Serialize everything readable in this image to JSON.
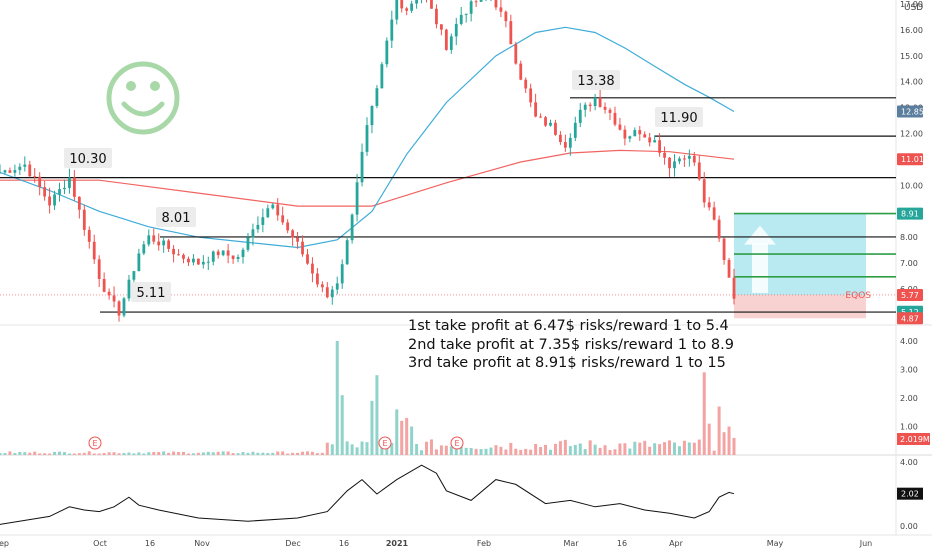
{
  "chart_data": {
    "type": "candlestick",
    "symbol": "EQOS",
    "currency": "USD",
    "last_price": "5.77",
    "price_axis": {
      "range": [
        4.5,
        17.0
      ],
      "ticks": [
        "17.00",
        "16.00",
        "15.00",
        "14.00",
        "13.00",
        "12.00",
        "11.00",
        "10.00",
        "9.00",
        "8.00",
        "7.00",
        "6.00"
      ]
    },
    "price_tags": [
      {
        "label": "12.85",
        "value": 12.85,
        "color": "#5b7d9e"
      },
      {
        "label": "11.01",
        "value": 11.01,
        "color": "#ef5350"
      },
      {
        "label": "8.91",
        "value": 8.91,
        "color": "#26a69a"
      },
      {
        "label": "5.77",
        "value": 5.77,
        "color": "#ef5350"
      },
      {
        "label": "5.12",
        "value": 5.12,
        "color": "#26a69a"
      },
      {
        "label": "4.87",
        "value": 4.87,
        "color": "#ef5350"
      }
    ],
    "time_axis": [
      "ep",
      "Oct",
      "16",
      "Nov",
      "Dec",
      "16",
      "2021",
      "Feb",
      "Mar",
      "16",
      "Apr",
      "May",
      "Jun"
    ],
    "horizontal_levels": [
      13.38,
      11.9,
      10.3,
      8.01,
      5.11
    ],
    "callouts": [
      "10.30",
      "8.01",
      "5.11",
      "13.38",
      "11.90"
    ],
    "ohlc_path": [
      [
        0,
        10.5
      ],
      [
        5,
        10.8
      ],
      [
        10,
        9.3
      ],
      [
        14,
        10.3
      ],
      [
        16,
        9.0
      ],
      [
        18,
        7.8
      ],
      [
        20,
        6.5
      ],
      [
        22,
        5.6
      ],
      [
        24,
        5.11
      ],
      [
        26,
        6.2
      ],
      [
        28,
        7.4
      ],
      [
        30,
        8.01
      ],
      [
        33,
        7.7
      ],
      [
        36,
        7.3
      ],
      [
        40,
        7.0
      ],
      [
        44,
        7.4
      ],
      [
        48,
        7.2
      ],
      [
        52,
        8.6
      ],
      [
        55,
        9.4
      ],
      [
        58,
        8.2
      ],
      [
        61,
        7.4
      ],
      [
        64,
        6.2
      ],
      [
        66,
        5.7
      ],
      [
        68,
        6.3
      ],
      [
        70,
        7.8
      ],
      [
        72,
        10.2
      ],
      [
        74,
        12.2
      ],
      [
        76,
        13.6
      ],
      [
        78,
        15.5
      ],
      [
        80,
        17.2
      ],
      [
        82,
        16.8
      ],
      [
        85,
        17.6
      ],
      [
        88,
        16.3
      ],
      [
        90,
        15.4
      ],
      [
        93,
        16.6
      ],
      [
        96,
        17.1
      ],
      [
        99,
        17.4
      ],
      [
        102,
        16.2
      ],
      [
        105,
        14.2
      ],
      [
        108,
        12.6
      ],
      [
        111,
        12.3
      ],
      [
        114,
        11.6
      ],
      [
        117,
        12.8
      ],
      [
        120,
        13.38
      ],
      [
        123,
        12.8
      ],
      [
        126,
        11.9
      ],
      [
        129,
        12.1
      ],
      [
        132,
        11.7
      ],
      [
        135,
        10.8
      ],
      [
        138,
        11.2
      ],
      [
        140,
        10.9
      ],
      [
        142,
        9.4
      ],
      [
        144,
        8.6
      ],
      [
        146,
        7.2
      ],
      [
        148,
        5.77
      ]
    ],
    "moving_averages": [
      {
        "color": "#ef5350",
        "points": [
          [
            0,
            10.2
          ],
          [
            20,
            10.2
          ],
          [
            40,
            9.7
          ],
          [
            60,
            9.2
          ],
          [
            75,
            9.2
          ],
          [
            90,
            10.1
          ],
          [
            105,
            10.9
          ],
          [
            115,
            11.25
          ],
          [
            125,
            11.35
          ],
          [
            135,
            11.3
          ],
          [
            148,
            11.01
          ]
        ]
      },
      {
        "color": "#2aa3d4",
        "points": [
          [
            0,
            10.5
          ],
          [
            10,
            9.8
          ],
          [
            20,
            9.0
          ],
          [
            30,
            8.4
          ],
          [
            40,
            8.0
          ],
          [
            50,
            7.8
          ],
          [
            60,
            7.6
          ],
          [
            68,
            7.9
          ],
          [
            75,
            9.0
          ],
          [
            82,
            11.2
          ],
          [
            90,
            13.2
          ],
          [
            100,
            15.0
          ],
          [
            108,
            15.9
          ],
          [
            114,
            16.1
          ],
          [
            120,
            15.9
          ],
          [
            126,
            15.3
          ],
          [
            132,
            14.6
          ],
          [
            138,
            13.9
          ],
          [
            143,
            13.4
          ],
          [
            148,
            12.85
          ]
        ]
      }
    ],
    "volume_axis": {
      "range": [
        0,
        4.4
      ],
      "ticks": [
        "4.00",
        "3.00",
        "2.00",
        "1.00"
      ],
      "last": "2.019M"
    },
    "volume_spikes": [
      [
        68,
        4.0
      ],
      [
        69,
        2.1
      ],
      [
        75,
        1.9
      ],
      [
        76,
        2.8
      ],
      [
        80,
        1.6
      ],
      [
        81,
        1.2
      ],
      [
        82,
        1.3
      ],
      [
        83,
        1.0
      ],
      [
        142,
        2.9
      ],
      [
        143,
        1.1
      ],
      [
        145,
        1.7
      ],
      [
        146,
        0.8
      ],
      [
        147,
        1.0
      ],
      [
        148,
        0.6
      ]
    ],
    "earnings_markers": [
      "E",
      "E",
      "E"
    ],
    "oscillator_axis": {
      "range": [
        -0.3,
        4.5
      ],
      "ticks": [
        "4.00",
        "2.00",
        "0.00"
      ],
      "last": "2.02"
    },
    "oscillator_path": [
      [
        0,
        0.1
      ],
      [
        10,
        0.6
      ],
      [
        14,
        1.2
      ],
      [
        17,
        1.0
      ],
      [
        20,
        0.9
      ],
      [
        23,
        1.2
      ],
      [
        26,
        1.8
      ],
      [
        28,
        1.3
      ],
      [
        32,
        1.0
      ],
      [
        40,
        0.5
      ],
      [
        50,
        0.3
      ],
      [
        60,
        0.5
      ],
      [
        66,
        0.9
      ],
      [
        70,
        2.2
      ],
      [
        73,
        2.9
      ],
      [
        76,
        2.0
      ],
      [
        80,
        2.9
      ],
      [
        85,
        3.8
      ],
      [
        88,
        3.3
      ],
      [
        90,
        2.2
      ],
      [
        95,
        1.6
      ],
      [
        100,
        2.9
      ],
      [
        104,
        2.6
      ],
      [
        110,
        1.4
      ],
      [
        115,
        1.6
      ],
      [
        120,
        1.2
      ],
      [
        125,
        1.4
      ],
      [
        130,
        1.0
      ],
      [
        135,
        0.8
      ],
      [
        140,
        0.5
      ],
      [
        143,
        0.9
      ],
      [
        145,
        1.8
      ],
      [
        147,
        2.1
      ],
      [
        148,
        2.02
      ]
    ],
    "position_box": {
      "entry": 5.77,
      "stop": 4.87,
      "targets": [
        6.47,
        7.35,
        8.91
      ]
    },
    "notes": [
      "1st take profit at 6.47$ risks/reward 1 to 5.4",
      "2nd take profit at 7.35$ risks/reward 1 to 8.9",
      "3rd take profit at 8.91$ risks/reward 1 to 15"
    ]
  }
}
